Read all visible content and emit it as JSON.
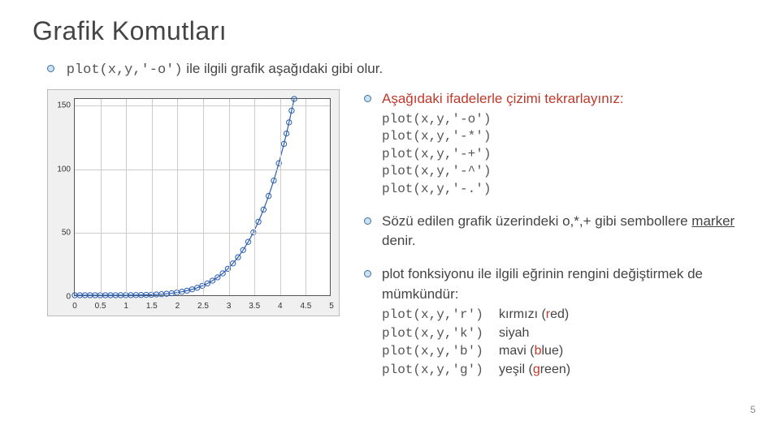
{
  "title": "Grafik Komutları",
  "intro_code": "plot(x,y,'-o')",
  "intro_text": " ile ilgili grafik aşağıdaki gibi olur.",
  "chart": {
    "xlim": [
      0,
      5
    ],
    "ylim": [
      0,
      155
    ],
    "xticks": [
      0,
      0.5,
      1,
      1.5,
      2,
      2.5,
      3,
      3.5,
      4,
      4.5,
      5
    ],
    "yticks": [
      {
        "v": 0,
        "label": "0"
      },
      {
        "v": 50,
        "label": "50"
      },
      {
        "v": 100,
        "label": "100"
      },
      {
        "v": 150,
        "label": "150"
      }
    ],
    "marker_radius": 3.2,
    "line_color": "#2a5db0",
    "line_width": 1.2,
    "data": [
      [
        0,
        0.0
      ],
      [
        0.1,
        0.0
      ],
      [
        0.2,
        0.0
      ],
      [
        0.3,
        0.0
      ],
      [
        0.4,
        0.0
      ],
      [
        0.5,
        0.0
      ],
      [
        0.6,
        0.0
      ],
      [
        0.7,
        0.0
      ],
      [
        0.8,
        0.01
      ],
      [
        0.9,
        0.02
      ],
      [
        1.0,
        0.04
      ],
      [
        1.1,
        0.07
      ],
      [
        1.2,
        0.11
      ],
      [
        1.3,
        0.18
      ],
      [
        1.4,
        0.28
      ],
      [
        1.5,
        0.41
      ],
      [
        1.6,
        0.59
      ],
      [
        1.7,
        0.83
      ],
      [
        1.8,
        1.15
      ],
      [
        1.9,
        1.57
      ],
      [
        2.0,
        2.1
      ],
      [
        2.1,
        2.77
      ],
      [
        2.2,
        3.6
      ],
      [
        2.3,
        4.64
      ],
      [
        2.4,
        5.9
      ],
      [
        2.5,
        7.45
      ],
      [
        2.6,
        9.3
      ],
      [
        2.7,
        11.52
      ],
      [
        2.8,
        14.15
      ],
      [
        2.9,
        17.25
      ],
      [
        3.0,
        20.88
      ],
      [
        3.1,
        25.12
      ],
      [
        3.2,
        30.02
      ],
      [
        3.3,
        35.68
      ],
      [
        3.4,
        42.17
      ],
      [
        3.5,
        49.58
      ],
      [
        3.6,
        58.03
      ],
      [
        3.7,
        67.59
      ],
      [
        3.8,
        78.4
      ],
      [
        3.9,
        90.56
      ],
      [
        4.0,
        104.21
      ],
      [
        4.1,
        119.47
      ],
      [
        4.15,
        127.7
      ],
      [
        4.2,
        136.5
      ],
      [
        4.25,
        145.8
      ],
      [
        4.3,
        155.0
      ]
    ]
  },
  "block1_title": "Aşağıdaki ifadelerle çizimi tekrarlayınız:",
  "block1_lines": [
    "plot(x,y,'-o')",
    "plot(x,y,'-*')",
    "plot(x,y,'-+')",
    "plot(x,y,'-^')",
    "plot(x,y,'-.')"
  ],
  "block2_pre": "Sözü edilen grafik üzerindeki o,*,+ gibi sembollere ",
  "block2_marker": "marker",
  "block2_post": " denir.",
  "block3_text": "plot fonksiyonu ile ilgili eğrinin rengini değiştirmek de mümkündür:",
  "block3_lines": [
    {
      "code": "plot(x,y,'r')",
      "meaning_pre": "kırmızı (",
      "red": "r",
      "meaning_post": "ed)"
    },
    {
      "code": "plot(x,y,'k')",
      "meaning": "siyah"
    },
    {
      "code": "plot(x,y,'b')",
      "meaning_pre": "mavi (",
      "red": "b",
      "meaning_post": "lue)"
    },
    {
      "code": "plot(x,y,'g')",
      "meaning_pre": "yeşil (",
      "red": "g",
      "meaning_post": "reen)"
    }
  ],
  "page_number": "5"
}
